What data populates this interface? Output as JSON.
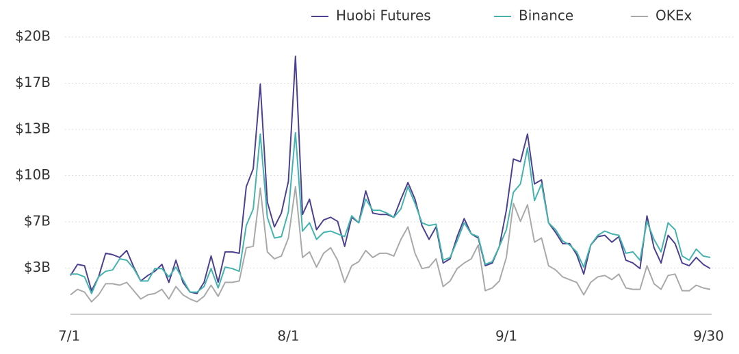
{
  "chart_data": {
    "type": "line",
    "categories": [
      "7/1",
      null,
      null,
      null,
      null,
      null,
      null,
      null,
      null,
      null,
      null,
      null,
      null,
      null,
      null,
      null,
      null,
      null,
      null,
      null,
      null,
      null,
      null,
      null,
      null,
      null,
      null,
      null,
      null,
      null,
      null,
      "8/1",
      null,
      null,
      null,
      null,
      null,
      null,
      null,
      null,
      null,
      null,
      null,
      null,
      null,
      null,
      null,
      null,
      null,
      null,
      null,
      null,
      null,
      null,
      null,
      null,
      null,
      null,
      null,
      null,
      null,
      null,
      "9/1",
      null,
      null,
      null,
      null,
      null,
      null,
      null,
      null,
      null,
      null,
      null,
      null,
      null,
      null,
      null,
      null,
      null,
      null,
      null,
      null,
      null,
      null,
      null,
      null,
      null,
      null,
      null,
      null,
      "9/30"
    ],
    "series": [
      {
        "name": "Huobi Futures",
        "color": "#4b4190",
        "values": [
          2.8,
          3.6,
          3.5,
          1.7,
          2.7,
          4.4,
          4.3,
          4.1,
          4.6,
          3.4,
          2.4,
          2.8,
          3.1,
          3.6,
          2.3,
          3.9,
          2.3,
          1.6,
          1.5,
          2.3,
          4.2,
          2.3,
          4.5,
          4.5,
          4.4,
          9.2,
          10.5,
          16.6,
          8.1,
          6.3,
          7.3,
          9.6,
          18.6,
          7.2,
          8.3,
          6.1,
          6.8,
          7.0,
          6.7,
          4.9,
          7.0,
          6.6,
          8.9,
          7.3,
          7.2,
          7.2,
          7.0,
          8.3,
          9.5,
          8.3,
          6.4,
          5.4,
          6.3,
          3.7,
          4.0,
          5.6,
          6.9,
          5.8,
          5.5,
          3.5,
          3.7,
          4.9,
          7.5,
          11.2,
          11.0,
          13.0,
          9.4,
          9.7,
          6.6,
          5.9,
          5.1,
          5.1,
          4.3,
          2.9,
          5.0,
          5.6,
          5.7,
          5.2,
          5.6,
          3.9,
          3.7,
          3.3,
          7.1,
          4.8,
          3.7,
          5.7,
          5.1,
          3.7,
          3.5,
          4.1,
          3.6,
          3.3
        ]
      },
      {
        "name": "Binance",
        "color": "#45b3ad",
        "values": [
          2.9,
          2.9,
          2.7,
          1.5,
          2.7,
          3.1,
          3.2,
          4.0,
          3.9,
          3.3,
          2.4,
          2.4,
          3.3,
          3.3,
          2.7,
          3.4,
          2.5,
          1.6,
          1.6,
          2.0,
          3.3,
          1.9,
          3.4,
          3.3,
          3.1,
          6.4,
          7.6,
          13.0,
          7.0,
          5.5,
          5.6,
          7.4,
          13.1,
          6.0,
          6.6,
          5.4,
          5.9,
          6.0,
          5.8,
          5.6,
          7.1,
          6.6,
          8.3,
          7.5,
          7.5,
          7.3,
          7.0,
          7.6,
          9.2,
          8.0,
          6.6,
          6.4,
          6.5,
          3.9,
          4.1,
          5.3,
          6.6,
          5.8,
          5.6,
          3.6,
          3.8,
          4.9,
          6.1,
          8.8,
          9.4,
          12.0,
          8.2,
          9.4,
          6.6,
          6.1,
          5.3,
          5.0,
          4.5,
          3.4,
          5.0,
          5.7,
          6.0,
          5.8,
          5.7,
          4.4,
          4.5,
          3.9,
          6.7,
          5.4,
          4.5,
          6.6,
          6.1,
          4.2,
          3.9,
          4.7,
          4.2,
          4.1
        ]
      },
      {
        "name": "OKEx",
        "color": "#a9a9a9",
        "values": [
          1.4,
          1.8,
          1.6,
          0.9,
          1.4,
          2.2,
          2.2,
          2.1,
          2.3,
          1.7,
          1.1,
          1.4,
          1.5,
          1.8,
          1.1,
          2.0,
          1.4,
          1.1,
          0.9,
          1.3,
          2.1,
          1.3,
          2.3,
          2.3,
          2.4,
          4.8,
          4.9,
          9.1,
          4.5,
          4.0,
          4.2,
          5.5,
          9.2,
          4.1,
          4.5,
          3.4,
          4.4,
          4.8,
          3.9,
          2.3,
          3.5,
          3.8,
          4.6,
          4.1,
          4.4,
          4.4,
          4.2,
          5.4,
          6.3,
          4.4,
          3.3,
          3.4,
          4.0,
          2.0,
          2.4,
          3.3,
          3.7,
          4.0,
          5.0,
          1.7,
          1.9,
          2.4,
          4.1,
          8.0,
          6.7,
          7.9,
          5.2,
          5.5,
          3.5,
          3.2,
          2.7,
          2.5,
          2.3,
          1.4,
          2.3,
          2.7,
          2.8,
          2.5,
          2.9,
          1.9,
          1.8,
          1.8,
          3.5,
          2.2,
          1.8,
          2.8,
          2.9,
          1.7,
          1.7,
          2.1,
          1.9,
          1.8
        ]
      }
    ],
    "ylim": [
      0,
      20
    ],
    "yticks": [
      {
        "value": 3.333,
        "label": "$3B"
      },
      {
        "value": 6.667,
        "label": "$7B"
      },
      {
        "value": 10,
        "label": "$10B"
      },
      {
        "value": 13.333,
        "label": "$13B"
      },
      {
        "value": 16.667,
        "label": "$17B"
      },
      {
        "value": 20,
        "label": "$20B"
      }
    ],
    "grid": true
  }
}
